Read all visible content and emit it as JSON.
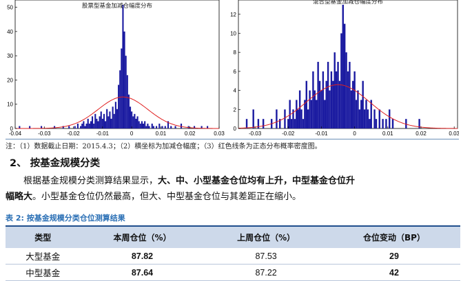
{
  "chart_data": [
    {
      "type": "bar",
      "title": "股票型基金加减仓幅度分布",
      "xlim": [
        -0.04,
        0.03
      ],
      "ylim": [
        0,
        53
      ],
      "xticks": [
        "-0.04",
        "-0.03",
        "-0.02",
        "-0.01",
        "0",
        "0.01",
        "0.02",
        "0.03"
      ],
      "yticks": [
        "0",
        "10",
        "20",
        "30",
        "40",
        "50"
      ],
      "bin_width": 0.0005,
      "bar_color": "#1a1aa0",
      "bars": [
        {
          "x": -0.0385,
          "y": 1
        },
        {
          "x": -0.035,
          "y": 1
        },
        {
          "x": -0.031,
          "y": 1
        },
        {
          "x": -0.0265,
          "y": 1
        },
        {
          "x": -0.0235,
          "y": 1
        },
        {
          "x": -0.0215,
          "y": 1
        },
        {
          "x": -0.0195,
          "y": 1
        },
        {
          "x": -0.0185,
          "y": 2
        },
        {
          "x": -0.0175,
          "y": 1
        },
        {
          "x": -0.017,
          "y": 2
        },
        {
          "x": -0.0165,
          "y": 3
        },
        {
          "x": -0.016,
          "y": 1
        },
        {
          "x": -0.0155,
          "y": 2
        },
        {
          "x": -0.015,
          "y": 4
        },
        {
          "x": -0.0145,
          "y": 2
        },
        {
          "x": -0.014,
          "y": 3
        },
        {
          "x": -0.0135,
          "y": 5
        },
        {
          "x": -0.013,
          "y": 2
        },
        {
          "x": -0.0125,
          "y": 6
        },
        {
          "x": -0.012,
          "y": 4
        },
        {
          "x": -0.0115,
          "y": 3
        },
        {
          "x": -0.011,
          "y": 5
        },
        {
          "x": -0.0105,
          "y": 7
        },
        {
          "x": -0.01,
          "y": 4
        },
        {
          "x": -0.0095,
          "y": 6
        },
        {
          "x": -0.009,
          "y": 3
        },
        {
          "x": -0.0085,
          "y": 8
        },
        {
          "x": -0.008,
          "y": 5
        },
        {
          "x": -0.0075,
          "y": 7
        },
        {
          "x": -0.007,
          "y": 4
        },
        {
          "x": -0.0065,
          "y": 9
        },
        {
          "x": -0.006,
          "y": 6
        },
        {
          "x": -0.0055,
          "y": 11
        },
        {
          "x": -0.005,
          "y": 8
        },
        {
          "x": -0.0045,
          "y": 18
        },
        {
          "x": -0.004,
          "y": 24
        },
        {
          "x": -0.0035,
          "y": 33
        },
        {
          "x": -0.003,
          "y": 51
        },
        {
          "x": -0.0025,
          "y": 40
        },
        {
          "x": -0.002,
          "y": 30
        },
        {
          "x": -0.0015,
          "y": 22
        },
        {
          "x": -0.001,
          "y": 14
        },
        {
          "x": -0.0005,
          "y": 9
        },
        {
          "x": 0.0,
          "y": 7
        },
        {
          "x": 0.0005,
          "y": 5
        },
        {
          "x": 0.001,
          "y": 6
        },
        {
          "x": 0.0015,
          "y": 4
        },
        {
          "x": 0.002,
          "y": 5
        },
        {
          "x": 0.0025,
          "y": 3
        },
        {
          "x": 0.003,
          "y": 2
        },
        {
          "x": 0.0035,
          "y": 3
        },
        {
          "x": 0.004,
          "y": 2
        },
        {
          "x": 0.0045,
          "y": 3
        },
        {
          "x": 0.005,
          "y": 1
        },
        {
          "x": 0.0055,
          "y": 2
        },
        {
          "x": 0.006,
          "y": 1
        },
        {
          "x": 0.007,
          "y": 2
        },
        {
          "x": 0.0075,
          "y": 1
        },
        {
          "x": 0.0085,
          "y": 1
        },
        {
          "x": 0.0095,
          "y": 2
        },
        {
          "x": 0.0105,
          "y": 1
        },
        {
          "x": 0.0115,
          "y": 1
        },
        {
          "x": 0.0125,
          "y": 3
        },
        {
          "x": 0.0135,
          "y": 1
        },
        {
          "x": 0.015,
          "y": 1
        },
        {
          "x": 0.017,
          "y": 2
        },
        {
          "x": 0.0195,
          "y": 1
        },
        {
          "x": 0.0215,
          "y": 1
        },
        {
          "x": 0.024,
          "y": 1
        },
        {
          "x": 0.026,
          "y": 1
        }
      ],
      "normal_curve": {
        "mean": -0.003,
        "sd": 0.0085,
        "peak": 13,
        "color": "#e02020"
      }
    },
    {
      "type": "bar",
      "title": "混合型基金加减仓幅度分布",
      "xlim": [
        -0.035,
        0.031
      ],
      "ylim": [
        0,
        13.5
      ],
      "xticks": [
        "-0.03",
        "-0.02",
        "-0.01",
        "0",
        "0.01",
        "0.02",
        "0.03"
      ],
      "yticks": [
        "0",
        "2",
        "4",
        "6",
        "8",
        "10",
        "12"
      ],
      "bin_width": 0.0005,
      "bar_color": "#1a1aa0",
      "bars": [
        {
          "x": -0.0325,
          "y": 1
        },
        {
          "x": -0.0305,
          "y": 2
        },
        {
          "x": -0.029,
          "y": 1
        },
        {
          "x": -0.0275,
          "y": 1
        },
        {
          "x": -0.025,
          "y": 1
        },
        {
          "x": -0.0235,
          "y": 2
        },
        {
          "x": -0.0225,
          "y": 1
        },
        {
          "x": -0.021,
          "y": 2
        },
        {
          "x": -0.02,
          "y": 1
        },
        {
          "x": -0.0195,
          "y": 3
        },
        {
          "x": -0.019,
          "y": 1
        },
        {
          "x": -0.0185,
          "y": 2
        },
        {
          "x": -0.018,
          "y": 1
        },
        {
          "x": -0.0175,
          "y": 3
        },
        {
          "x": -0.017,
          "y": 2
        },
        {
          "x": -0.0165,
          "y": 4
        },
        {
          "x": -0.016,
          "y": 2
        },
        {
          "x": -0.0155,
          "y": 1
        },
        {
          "x": -0.015,
          "y": 3
        },
        {
          "x": -0.0145,
          "y": 5
        },
        {
          "x": -0.014,
          "y": 2
        },
        {
          "x": -0.0135,
          "y": 4
        },
        {
          "x": -0.013,
          "y": 3
        },
        {
          "x": -0.0125,
          "y": 6
        },
        {
          "x": -0.012,
          "y": 4
        },
        {
          "x": -0.0115,
          "y": 3
        },
        {
          "x": -0.011,
          "y": 7
        },
        {
          "x": -0.0105,
          "y": 5
        },
        {
          "x": -0.01,
          "y": 4
        },
        {
          "x": -0.0095,
          "y": 6
        },
        {
          "x": -0.009,
          "y": 3
        },
        {
          "x": -0.0085,
          "y": 5
        },
        {
          "x": -0.008,
          "y": 7
        },
        {
          "x": -0.0075,
          "y": 4
        },
        {
          "x": -0.007,
          "y": 6
        },
        {
          "x": -0.0065,
          "y": 5
        },
        {
          "x": -0.006,
          "y": 8
        },
        {
          "x": -0.0055,
          "y": 6
        },
        {
          "x": -0.005,
          "y": 7
        },
        {
          "x": -0.0045,
          "y": 5
        },
        {
          "x": -0.004,
          "y": 10
        },
        {
          "x": -0.0035,
          "y": 13
        },
        {
          "x": -0.003,
          "y": 11
        },
        {
          "x": -0.0025,
          "y": 8
        },
        {
          "x": -0.002,
          "y": 6
        },
        {
          "x": -0.0015,
          "y": 7
        },
        {
          "x": -0.001,
          "y": 4
        },
        {
          "x": -0.0005,
          "y": 5
        },
        {
          "x": 0.0,
          "y": 6
        },
        {
          "x": 0.0005,
          "y": 3
        },
        {
          "x": 0.001,
          "y": 4
        },
        {
          "x": 0.0015,
          "y": 2
        },
        {
          "x": 0.002,
          "y": 3
        },
        {
          "x": 0.0025,
          "y": 5
        },
        {
          "x": 0.003,
          "y": 2
        },
        {
          "x": 0.0035,
          "y": 3
        },
        {
          "x": 0.004,
          "y": 2
        },
        {
          "x": 0.0045,
          "y": 1
        },
        {
          "x": 0.005,
          "y": 3
        },
        {
          "x": 0.006,
          "y": 2
        },
        {
          "x": 0.0065,
          "y": 1
        },
        {
          "x": 0.0075,
          "y": 2
        },
        {
          "x": 0.0085,
          "y": 1
        },
        {
          "x": 0.0095,
          "y": 1
        },
        {
          "x": 0.0105,
          "y": 2
        },
        {
          "x": 0.0115,
          "y": 1
        },
        {
          "x": 0.0155,
          "y": 1
        },
        {
          "x": 0.0195,
          "y": 1
        }
      ],
      "normal_curve": {
        "mean": -0.005,
        "sd": 0.0095,
        "peak": 4.6,
        "color": "#e02020"
      }
    }
  ],
  "note": "注：（1）数据截止日期：2015.4.3；（2）横坐标为加减仓幅度；（3）红色线条为正态分布概率密度图。",
  "section": {
    "number": "2、",
    "title": "按基金规模分类"
  },
  "paragraph": {
    "line1_plain": "根据基金规模分类测算结果显示，",
    "line1_bold": "大、中、小型基金仓位均有上升，中型基金仓位升",
    "line2_bold": "幅略大",
    "line2_plain": "。小型基金仓位仍然最高，但大、中型基金仓位与其差距正在缩小。"
  },
  "table": {
    "title": "表 2:  按基金规模分类仓位测算结果",
    "headers": [
      "类型",
      "本周仓位（%）",
      "上周仓位（%）",
      "仓位变动（BP）"
    ],
    "rows": [
      {
        "type": "大型基金",
        "this_week": "87.82",
        "last_week": "87.53",
        "change": "29"
      },
      {
        "type": "中型基金",
        "this_week": "87.64",
        "last_week": "87.22",
        "change": "42"
      }
    ]
  }
}
